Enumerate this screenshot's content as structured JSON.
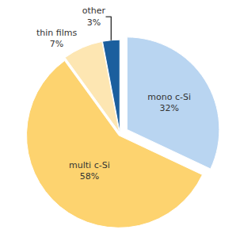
{
  "chart_data": {
    "type": "pie",
    "categories": [
      "mono c-Si",
      "multi c-Si",
      "thin films",
      "other"
    ],
    "values": [
      32,
      58,
      7,
      3
    ],
    "value_labels": [
      "32%",
      "58%",
      "7%",
      "3%"
    ],
    "colors": [
      "#b9d5f1",
      "#fdd36f",
      "#fde6b2",
      "#1b5f9e"
    ],
    "data_labels": true
  }
}
